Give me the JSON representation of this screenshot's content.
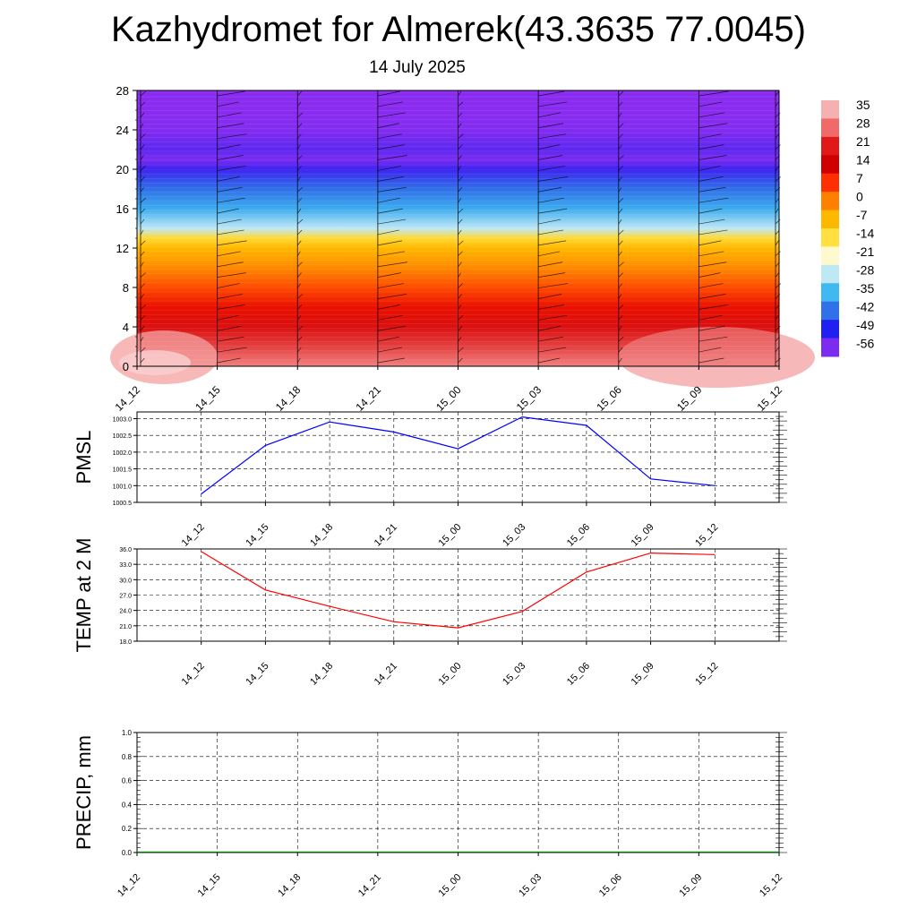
{
  "title": "Kazhydromet for Almerek(43.3635 77.0045)",
  "subtitle": "14 July 2025",
  "time_labels": [
    "14_12",
    "14_15",
    "14_18",
    "14_21",
    "15_00",
    "15_03",
    "15_06",
    "15_09",
    "15_12"
  ],
  "chart_data": [
    {
      "type": "heatmap",
      "ylim": [
        0,
        28
      ],
      "y_ticks": [
        0,
        4,
        8,
        12,
        16,
        20,
        24,
        28
      ],
      "x_categories": [
        "14_12",
        "14_15",
        "14_18",
        "14_21",
        "15_00",
        "15_03",
        "15_06",
        "15_09",
        "15_12"
      ],
      "description_values": {
        "y_levels": [
          0,
          2,
          4,
          6,
          8,
          10,
          12,
          13,
          14,
          16,
          18,
          20,
          21,
          22,
          24,
          26,
          28
        ],
        "values": [
          32,
          27,
          22,
          16,
          10,
          5,
          0,
          -5,
          -18,
          -32,
          -42,
          -52,
          -56,
          -54,
          -58,
          -60,
          -60
        ]
      },
      "colorbar_labels": [
        "35",
        "28",
        "21",
        "14",
        "7",
        "0",
        "-7",
        "-14",
        "-21",
        "-28",
        "-35",
        "-42",
        "-49",
        "-56"
      ],
      "colorbar_colors": [
        "#f7b0b0",
        "#f06a6a",
        "#e01818",
        "#d00000",
        "#ff3000",
        "#ff8000",
        "#ffb800",
        "#ffe040",
        "#fffacd",
        "#bfe8f5",
        "#40b8f0",
        "#3070e8",
        "#2020f0",
        "#7b2cf0"
      ]
    },
    {
      "type": "line",
      "ylabel": "PMSL",
      "x": [
        "14_12",
        "14_15",
        "14_18",
        "14_21",
        "15_00",
        "15_03",
        "15_06",
        "15_09",
        "15_12"
      ],
      "values": [
        1000.75,
        1002.2,
        1002.9,
        1002.6,
        1002.1,
        1003.05,
        1002.8,
        1001.2,
        1001.0
      ],
      "ylim": [
        1000.5,
        1003.2
      ],
      "y_ticks": [
        "1000.5",
        "1001.0",
        "1001.5",
        "1002.0",
        "1002.5",
        "1003.0"
      ],
      "color": "#0000ff"
    },
    {
      "type": "line",
      "ylabel": "TEMP at 2 M",
      "x": [
        "14_12",
        "14_15",
        "14_18",
        "14_21",
        "15_00",
        "15_03",
        "15_06",
        "15_09",
        "15_12"
      ],
      "values": [
        35.5,
        28.0,
        24.8,
        21.8,
        20.6,
        23.8,
        31.5,
        35.2,
        34.9
      ],
      "ylim": [
        18.0,
        36.0
      ],
      "y_ticks": [
        "18.0",
        "21.0",
        "24.0",
        "27.0",
        "30.0",
        "33.0",
        "36.0"
      ],
      "color": "#ff0000"
    },
    {
      "type": "line",
      "ylabel": "PRECIP, mm",
      "x": [
        "14_12",
        "14_15",
        "14_18",
        "14_21",
        "15_00",
        "15_03",
        "15_06",
        "15_09",
        "15_12"
      ],
      "values": [
        0,
        0,
        0,
        0,
        0,
        0,
        0,
        0,
        0
      ],
      "ylim": [
        0.0,
        1.0
      ],
      "y_ticks": [
        "0.0",
        "0.2",
        "0.4",
        "0.6",
        "0.8",
        "1.0"
      ],
      "color": "#008000"
    }
  ]
}
